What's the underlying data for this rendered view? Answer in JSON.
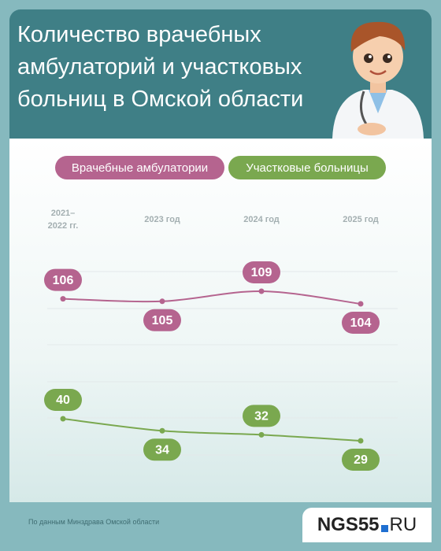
{
  "chart_data": {
    "type": "line",
    "title": "Количество врачебных амбулаторий и участковых больниц в Омской области",
    "categories": [
      "2021–\n2022 гг.",
      "2023 год",
      "2024 год",
      "2025 год"
    ],
    "series": [
      {
        "name": "Врачебные амбулатории",
        "color": "#b5648f",
        "values": [
          106,
          105,
          109,
          104
        ]
      },
      {
        "name": "Участковые больницы",
        "color": "#7aa84f",
        "values": [
          40,
          34,
          32,
          29
        ]
      }
    ]
  },
  "footer": {
    "source": "По данным Минздрава Омской области",
    "logo": "NGS55",
    "logo_suffix": "RU"
  }
}
